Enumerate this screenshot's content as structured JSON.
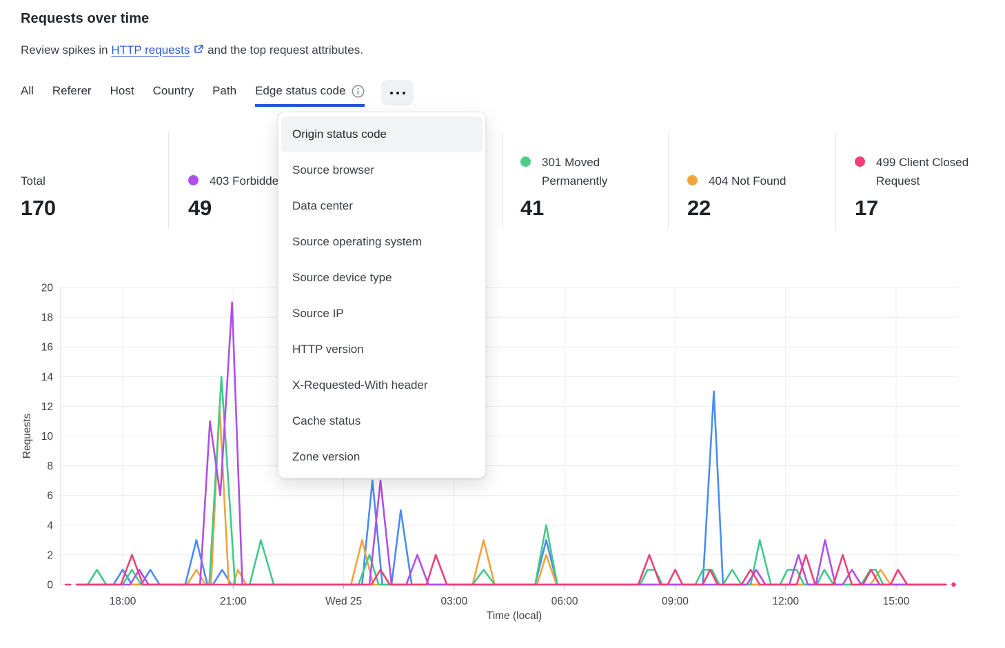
{
  "header": {
    "title": "Requests over time",
    "subtitle_prefix": "Review spikes in ",
    "link_text": "HTTP requests",
    "subtitle_suffix": " and the top request attributes."
  },
  "tabs": {
    "items": [
      "All",
      "Referer",
      "Host",
      "Country",
      "Path"
    ],
    "active": "Edge status code"
  },
  "menu": {
    "highlighted": "Origin status code",
    "items": [
      "Origin status code",
      "Source browser",
      "Data center",
      "Source operating system",
      "Source device type",
      "Source IP",
      "HTTP version",
      "X-Requested-With header",
      "Cache status",
      "Zone version"
    ]
  },
  "stats": [
    {
      "label": "Total",
      "value": "170",
      "color": null
    },
    {
      "label": "403 Forbidden",
      "value": "49",
      "color": "#b04fe6"
    },
    {
      "label": "301 Moved Permanently",
      "value": "41",
      "color": "#4ccd8a"
    },
    {
      "label": "404 Not Found",
      "value": "22",
      "color": "#f2a33c"
    },
    {
      "label": "499 Client Closed Request",
      "value": "17",
      "color": "#ef4077"
    }
  ],
  "colors": {
    "accent_blue": "#2257d6",
    "link_blue": "#2d5cd8",
    "grid": "#e9eaec",
    "axis": "#d7dadd"
  },
  "chart_data": {
    "type": "line",
    "title": "Requests over time",
    "xlabel": "Time (local)",
    "ylabel": "Requests",
    "ylim": [
      0,
      20
    ],
    "yticks": [
      0,
      2,
      4,
      6,
      8,
      10,
      12,
      14,
      16,
      18,
      20
    ],
    "x_unit": "decimal hours, 24 = Wed 25 00:00 local",
    "xlim": [
      16.45,
      40.6
    ],
    "grid": true,
    "legend_position": "top stats row",
    "xticks": [
      {
        "t": 18,
        "label": "18:00"
      },
      {
        "t": 21,
        "label": "21:00"
      },
      {
        "t": 24,
        "label": "Wed 25"
      },
      {
        "t": 27,
        "label": "03:00"
      },
      {
        "t": 30,
        "label": "06:00"
      },
      {
        "t": 33,
        "label": "09:00"
      },
      {
        "t": 36,
        "label": "12:00"
      },
      {
        "t": 39,
        "label": "15:00"
      }
    ],
    "series": [
      {
        "name": "unlabeled (legend hidden behind menu)",
        "color": "#4a8cf2",
        "points": [
          [
            16.75,
            0
          ],
          [
            17.75,
            0
          ],
          [
            18.0,
            1
          ],
          [
            18.25,
            0
          ],
          [
            18.5,
            0
          ],
          [
            18.75,
            1
          ],
          [
            19.0,
            0
          ],
          [
            19.7,
            0
          ],
          [
            20.0,
            3
          ],
          [
            20.3,
            0
          ],
          [
            20.45,
            0
          ],
          [
            20.7,
            1
          ],
          [
            20.95,
            0
          ],
          [
            24.5,
            0
          ],
          [
            24.78,
            7
          ],
          [
            25.05,
            0
          ],
          [
            25.3,
            0
          ],
          [
            25.55,
            5
          ],
          [
            25.85,
            0
          ],
          [
            29.2,
            0
          ],
          [
            29.5,
            3
          ],
          [
            29.8,
            0
          ],
          [
            33.75,
            0
          ],
          [
            34.05,
            13
          ],
          [
            34.3,
            0
          ],
          [
            40.35,
            0
          ]
        ]
      },
      {
        "name": "404 Not Found",
        "color": "#f2a33c",
        "points": [
          [
            16.75,
            0
          ],
          [
            19.75,
            0
          ],
          [
            20.0,
            1
          ],
          [
            20.25,
            0
          ],
          [
            20.4,
            0
          ],
          [
            20.63,
            12
          ],
          [
            20.88,
            0
          ],
          [
            21.0,
            0
          ],
          [
            21.13,
            1
          ],
          [
            21.35,
            0
          ],
          [
            24.2,
            0
          ],
          [
            24.5,
            3
          ],
          [
            24.8,
            0
          ],
          [
            27.5,
            0
          ],
          [
            27.8,
            3
          ],
          [
            28.1,
            0
          ],
          [
            29.25,
            0
          ],
          [
            29.5,
            2
          ],
          [
            29.78,
            0
          ],
          [
            38.3,
            0
          ],
          [
            38.58,
            1
          ],
          [
            38.85,
            0
          ],
          [
            40.35,
            0
          ]
        ]
      },
      {
        "name": "301 Moved Permanently",
        "color": "#41c98a",
        "points": [
          [
            16.75,
            0
          ],
          [
            17.05,
            0
          ],
          [
            17.3,
            1
          ],
          [
            17.55,
            0
          ],
          [
            18.0,
            0
          ],
          [
            18.25,
            1
          ],
          [
            18.5,
            0
          ],
          [
            20.35,
            0
          ],
          [
            20.68,
            14
          ],
          [
            21.05,
            0
          ],
          [
            21.45,
            0
          ],
          [
            21.75,
            3
          ],
          [
            22.1,
            0
          ],
          [
            24.4,
            0
          ],
          [
            24.7,
            2
          ],
          [
            24.95,
            0
          ],
          [
            27.5,
            0
          ],
          [
            27.8,
            1
          ],
          [
            28.1,
            0
          ],
          [
            29.2,
            0
          ],
          [
            29.5,
            4
          ],
          [
            29.8,
            0
          ],
          [
            32.05,
            0
          ],
          [
            32.25,
            1
          ],
          [
            32.45,
            1
          ],
          [
            32.65,
            0
          ],
          [
            33.55,
            0
          ],
          [
            33.75,
            1
          ],
          [
            34.0,
            1
          ],
          [
            34.2,
            0
          ],
          [
            34.3,
            0
          ],
          [
            34.55,
            1
          ],
          [
            34.8,
            0
          ],
          [
            35.05,
            0
          ],
          [
            35.3,
            3
          ],
          [
            35.6,
            0
          ],
          [
            35.85,
            0
          ],
          [
            36.05,
            1
          ],
          [
            36.3,
            1
          ],
          [
            36.5,
            0
          ],
          [
            36.85,
            0
          ],
          [
            37.05,
            1
          ],
          [
            37.3,
            0
          ],
          [
            38.05,
            0
          ],
          [
            38.3,
            1
          ],
          [
            38.45,
            1
          ],
          [
            38.65,
            0
          ],
          [
            40.35,
            0
          ]
        ]
      },
      {
        "name": "403 Forbidden",
        "color": "#b04fe6",
        "points": [
          [
            16.75,
            0
          ],
          [
            18.2,
            0
          ],
          [
            18.45,
            1
          ],
          [
            18.7,
            0
          ],
          [
            20.1,
            0
          ],
          [
            20.37,
            11
          ],
          [
            20.65,
            6
          ],
          [
            20.97,
            19
          ],
          [
            21.25,
            0
          ],
          [
            24.7,
            0
          ],
          [
            25.0,
            7
          ],
          [
            25.3,
            0
          ],
          [
            25.7,
            0
          ],
          [
            26.0,
            2
          ],
          [
            26.3,
            0
          ],
          [
            34.95,
            0
          ],
          [
            35.2,
            1
          ],
          [
            35.45,
            0
          ],
          [
            36.1,
            0
          ],
          [
            36.35,
            2
          ],
          [
            36.6,
            0
          ],
          [
            36.82,
            0
          ],
          [
            37.07,
            3
          ],
          [
            37.35,
            0
          ],
          [
            37.55,
            0
          ],
          [
            37.8,
            1
          ],
          [
            38.05,
            0
          ],
          [
            40.35,
            0
          ]
        ]
      },
      {
        "name": "499 Client Closed Request",
        "color": "#ef4077",
        "start_dash": true,
        "end_dot": true,
        "points": [
          [
            16.75,
            0
          ],
          [
            17.95,
            0
          ],
          [
            18.25,
            2
          ],
          [
            18.55,
            0
          ],
          [
            24.75,
            0
          ],
          [
            25.0,
            1
          ],
          [
            25.25,
            0
          ],
          [
            26.25,
            0
          ],
          [
            26.5,
            2
          ],
          [
            26.8,
            0
          ],
          [
            32.0,
            0
          ],
          [
            32.3,
            2
          ],
          [
            32.6,
            0
          ],
          [
            32.8,
            0
          ],
          [
            33.0,
            1
          ],
          [
            33.2,
            0
          ],
          [
            33.75,
            0
          ],
          [
            33.95,
            1
          ],
          [
            34.15,
            0
          ],
          [
            34.8,
            0
          ],
          [
            35.05,
            1
          ],
          [
            35.3,
            0
          ],
          [
            36.3,
            0
          ],
          [
            36.55,
            2
          ],
          [
            36.8,
            0
          ],
          [
            37.3,
            0
          ],
          [
            37.55,
            2
          ],
          [
            37.8,
            0
          ],
          [
            38.1,
            0
          ],
          [
            38.32,
            1
          ],
          [
            38.55,
            0
          ],
          [
            38.85,
            0
          ],
          [
            39.05,
            1
          ],
          [
            39.3,
            0
          ],
          [
            40.35,
            0
          ]
        ]
      }
    ]
  }
}
